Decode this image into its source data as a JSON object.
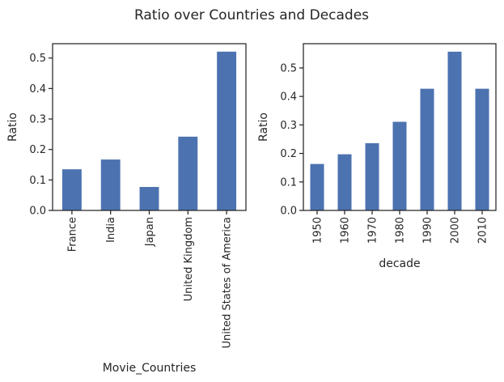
{
  "figure": {
    "title": "Ratio over Countries and Decades",
    "bar_color": "#4c72b0",
    "axis_color": "#262626"
  },
  "chart_data": [
    {
      "type": "bar",
      "categories": [
        "France",
        "India",
        "Japan",
        "United Kingdom",
        "United States of America"
      ],
      "values": [
        0.135,
        0.167,
        0.077,
        0.242,
        0.521
      ],
      "xlabel": "Movie_Countries",
      "ylabel": "Ratio",
      "ylim": [
        0,
        0.547
      ],
      "yticks": [
        0.0,
        0.1,
        0.2,
        0.3,
        0.4,
        0.5
      ],
      "ytick_labels": [
        "0.0",
        "0.1",
        "0.2",
        "0.3",
        "0.4",
        "0.5"
      ],
      "grid": false,
      "xtick_rotation": "vertical"
    },
    {
      "type": "bar",
      "categories": [
        "1950",
        "1960",
        "1970",
        "1980",
        "1990",
        "2000",
        "2010"
      ],
      "values": [
        0.163,
        0.197,
        0.236,
        0.311,
        0.427,
        0.557,
        0.427
      ],
      "xlabel": "decade",
      "ylabel": "Ratio",
      "ylim": [
        0,
        0.585
      ],
      "yticks": [
        0.0,
        0.1,
        0.2,
        0.3,
        0.4,
        0.5
      ],
      "ytick_labels": [
        "0.0",
        "0.1",
        "0.2",
        "0.3",
        "0.4",
        "0.5"
      ],
      "grid": false,
      "xtick_rotation": "vertical"
    }
  ]
}
